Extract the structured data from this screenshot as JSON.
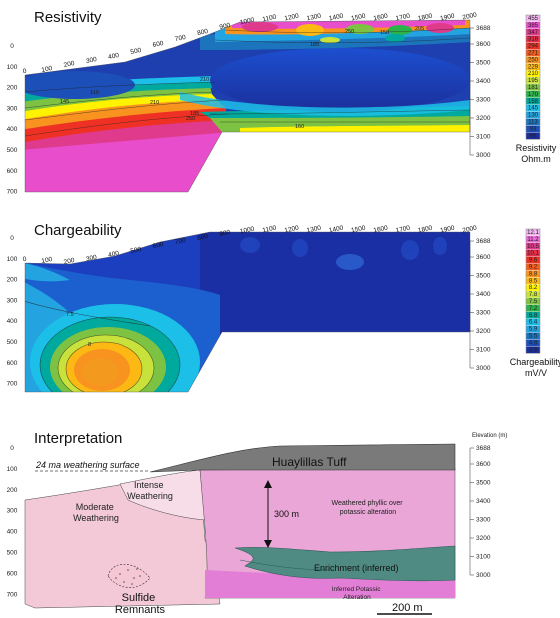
{
  "resistivity": {
    "title": "Resistivity",
    "legend_title": "Resistivity",
    "legend_unit": "Ohm.m",
    "legend_values": [
      "455",
      "385",
      "347",
      "318",
      "294",
      "271",
      "250",
      "229",
      "210",
      "195",
      "181",
      "170",
      "158",
      "145",
      "130",
      "113",
      "93",
      "66"
    ],
    "legend_colors": [
      "#f4b6f0",
      "#e84ecb",
      "#e03a8c",
      "#e62c46",
      "#ee3124",
      "#f25c1e",
      "#f7931e",
      "#fdb913",
      "#fff200",
      "#c8e23b",
      "#7dc242",
      "#2bb34a",
      "#00a99d",
      "#1cbfe8",
      "#23a3e0",
      "#1c75bc",
      "#1c4fb8",
      "#1b2f9a"
    ],
    "contour_labels": [
      "110",
      "145",
      "210",
      "185",
      "250",
      "160",
      "210",
      "250",
      "158",
      "205",
      "185"
    ]
  },
  "chargeability": {
    "title": "Chargeability",
    "legend_title": "Chargeability",
    "legend_unit": "mV/V",
    "legend_values": [
      "12.1",
      "11.2",
      "10.5",
      "10.1",
      "9.6",
      "9.2",
      "8.8",
      "8.5",
      "8.2",
      "7.8",
      "7.5",
      "7.2",
      "6.8",
      "6.4",
      "5.9",
      "5.5",
      "4.8",
      "3.9"
    ],
    "legend_colors": [
      "#f4b6f0",
      "#ea6ad6",
      "#e03a8c",
      "#e62c46",
      "#ee3124",
      "#f25c1e",
      "#f7931e",
      "#fdb913",
      "#fff200",
      "#c8e23b",
      "#7dc242",
      "#2bb34a",
      "#00a99d",
      "#1cbfe8",
      "#23a3e0",
      "#1c75bc",
      "#1c4fb8",
      "#1b2f9a"
    ],
    "contour_labels": [
      "7.5",
      "8"
    ]
  },
  "interpretation": {
    "title": "Interpretation",
    "elevation_label": "Elevation (m)",
    "weathering_surface": "24 ma weathering surface",
    "tuff": "Huaylillas Tuff",
    "intense": "Intense Weathering",
    "moderate": "Moderate Weathering",
    "weathered_phyllic": "Weathered phyllic over potassic alteration",
    "thickness": "300 m",
    "enrichment": "Enrichment (inferred)",
    "inferred_potassic": "Inferred Potassic Alteration",
    "sulfide": "Sulfide Remnants",
    "scale_bar": "200 m"
  },
  "axes": {
    "depth_ticks": [
      "0",
      "100",
      "200",
      "300",
      "400",
      "500",
      "600",
      "700"
    ],
    "elevation_ticks": [
      "3688",
      "3600",
      "3500",
      "3400",
      "3300",
      "3200",
      "3100",
      "3000"
    ],
    "distance_ticks": [
      "0",
      "100",
      "200",
      "300",
      "400",
      "500",
      "600",
      "700",
      "800",
      "900",
      "1000",
      "1100",
      "1200",
      "1300",
      "1400",
      "1500",
      "1600",
      "1700",
      "1800",
      "1900",
      "2000"
    ]
  }
}
